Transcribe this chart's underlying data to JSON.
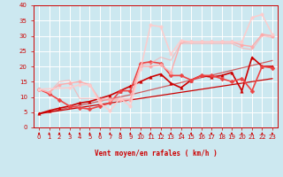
{
  "xlabel": "Vent moyen/en rafales ( km/h )",
  "bg_color": "#cce8f0",
  "grid_color": "#ffffff",
  "xlim": [
    -0.5,
    23.5
  ],
  "ylim": [
    0,
    40
  ],
  "yticks": [
    0,
    5,
    10,
    15,
    20,
    25,
    30,
    35,
    40
  ],
  "xticks": [
    0,
    1,
    2,
    3,
    4,
    5,
    6,
    7,
    8,
    9,
    10,
    11,
    12,
    13,
    14,
    15,
    16,
    17,
    18,
    19,
    20,
    21,
    22,
    23
  ],
  "line_configs": [
    {
      "x": [
        0,
        1,
        2,
        3,
        4,
        5,
        6,
        7,
        8,
        9,
        10,
        11,
        12,
        13,
        14,
        15,
        16,
        17,
        18,
        19,
        20,
        21,
        22,
        23
      ],
      "y": [
        4.5,
        5.0,
        5.5,
        6.0,
        6.5,
        7.0,
        7.5,
        8.0,
        8.5,
        9.0,
        9.5,
        10.0,
        10.5,
        11.0,
        11.5,
        12.0,
        12.5,
        13.0,
        13.5,
        14.0,
        14.5,
        15.0,
        15.5,
        16.0
      ],
      "color": "#cc0000",
      "lw": 0.9,
      "marker": null,
      "ms": 0,
      "alpha": 1.0
    },
    {
      "x": [
        0,
        1,
        2,
        3,
        4,
        5,
        6,
        7,
        8,
        9,
        10,
        11,
        12,
        13,
        14,
        15,
        16,
        17,
        18,
        19,
        20,
        21,
        22,
        23
      ],
      "y": [
        4.5,
        5.1,
        5.8,
        6.5,
        7.2,
        7.9,
        8.6,
        9.3,
        10.0,
        10.7,
        11.5,
        12.3,
        13.1,
        13.9,
        14.7,
        15.5,
        16.3,
        17.1,
        17.9,
        18.7,
        19.5,
        20.3,
        21.1,
        21.9
      ],
      "color": "#cc0000",
      "lw": 0.9,
      "marker": null,
      "ms": 0,
      "alpha": 0.6
    },
    {
      "x": [
        0,
        1,
        2,
        3,
        4,
        5,
        6,
        7,
        8,
        9,
        10,
        11,
        12,
        13,
        14,
        15,
        16,
        17,
        18,
        19,
        20,
        21,
        22,
        23
      ],
      "y": [
        4.5,
        5.5,
        6.3,
        7.0,
        8.0,
        8.5,
        9.5,
        10.5,
        12.0,
        13.5,
        15.0,
        16.5,
        17.5,
        14.5,
        13.0,
        15.5,
        17.0,
        16.5,
        17.0,
        18.0,
        12.0,
        23.0,
        20.0,
        20.0
      ],
      "color": "#cc0000",
      "lw": 1.2,
      "marker": "^",
      "ms": 2.5,
      "alpha": 1.0
    },
    {
      "x": [
        0,
        1,
        2,
        3,
        4,
        5,
        6,
        7,
        8,
        9,
        10,
        11,
        12,
        13,
        14,
        15,
        16,
        17,
        18,
        19,
        20,
        21,
        22,
        23
      ],
      "y": [
        12.5,
        11.0,
        9.0,
        7.0,
        6.5,
        6.0,
        7.0,
        8.0,
        12.0,
        12.0,
        21.0,
        21.5,
        21.0,
        17.0,
        17.0,
        15.5,
        17.0,
        17.0,
        16.0,
        15.0,
        16.0,
        12.0,
        20.0,
        19.5
      ],
      "color": "#ee4444",
      "lw": 1.2,
      "marker": "D",
      "ms": 2.5,
      "alpha": 1.0
    },
    {
      "x": [
        0,
        1,
        2,
        3,
        4,
        5,
        6,
        7,
        8,
        9,
        10,
        11,
        12,
        13,
        14,
        15,
        16,
        17,
        18,
        19,
        20,
        21,
        22,
        23
      ],
      "y": [
        12.5,
        11.5,
        14.0,
        14.5,
        15.0,
        14.0,
        9.0,
        9.0,
        9.0,
        9.0,
        20.0,
        20.0,
        20.5,
        18.0,
        28.0,
        28.0,
        28.0,
        28.0,
        28.0,
        28.0,
        27.0,
        26.5,
        30.5,
        30.0
      ],
      "color": "#ffaaaa",
      "lw": 1.0,
      "marker": "o",
      "ms": 2.5,
      "alpha": 1.0
    },
    {
      "x": [
        0,
        1,
        2,
        3,
        4,
        5,
        6,
        7,
        8,
        9,
        10,
        11,
        12,
        13,
        14,
        15,
        16,
        17,
        18,
        19,
        20,
        21,
        22,
        23
      ],
      "y": [
        12.5,
        11.5,
        15.0,
        15.5,
        9.5,
        9.5,
        9.5,
        9.5,
        9.5,
        9.5,
        20.5,
        21.0,
        23.0,
        22.0,
        27.5,
        27.5,
        27.5,
        27.5,
        27.5,
        27.5,
        26.0,
        25.5,
        30.0,
        29.5
      ],
      "color": "#ffaaaa",
      "lw": 0.9,
      "marker": null,
      "ms": 0,
      "alpha": 0.65
    },
    {
      "x": [
        0,
        3,
        4,
        5,
        6,
        7,
        8,
        9,
        10,
        11,
        12,
        13,
        14,
        15,
        16,
        17,
        18,
        19,
        20,
        21,
        22,
        23
      ],
      "y": [
        12.5,
        13.0,
        14.0,
        14.0,
        8.0,
        5.5,
        9.5,
        7.0,
        19.0,
        33.5,
        33.0,
        24.0,
        28.5,
        28.0,
        28.0,
        28.0,
        28.0,
        28.0,
        28.0,
        36.0,
        37.0,
        30.5
      ],
      "color": "#ffcccc",
      "lw": 1.2,
      "marker": "o",
      "ms": 2.5,
      "alpha": 0.9
    }
  ]
}
